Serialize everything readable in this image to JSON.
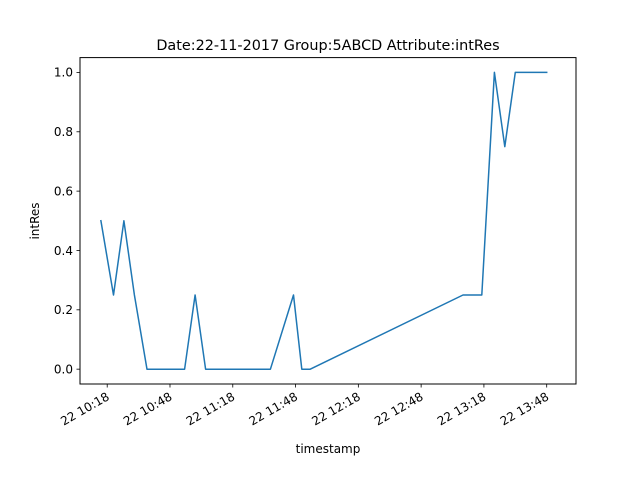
{
  "chart_data": {
    "type": "line",
    "title": "Date:22-11-2017  Group:5ABCD Attribute:intRes",
    "xlabel": "timestamp",
    "ylabel": "intRes",
    "grid": false,
    "x_tick_labels": [
      "22 10:18",
      "22 10:48",
      "22 11:18",
      "22 11:48",
      "22 12:18",
      "22 12:48",
      "22 13:18",
      "22 13:48"
    ],
    "x_ticks": [
      "2017-11-22 10:18",
      "2017-11-22 10:48",
      "2017-11-22 11:18",
      "2017-11-22 11:48",
      "2017-11-22 12:18",
      "2017-11-22 12:48",
      "2017-11-22 13:18",
      "2017-11-22 13:48"
    ],
    "xlim": [
      "2017-11-22 10:05",
      "2017-11-22 14:02"
    ],
    "y_ticks": [
      0.0,
      0.2,
      0.4,
      0.6,
      0.8,
      1.0
    ],
    "y_tick_labels": [
      "0.0",
      "0.2",
      "0.4",
      "0.6",
      "0.8",
      "1.0"
    ],
    "ylim": [
      -0.05,
      1.05
    ],
    "series": [
      {
        "color": "#1f77b4",
        "points": [
          {
            "x": "2017-11-22 10:15",
            "y": 0.5
          },
          {
            "x": "2017-11-22 10:21",
            "y": 0.25
          },
          {
            "x": "2017-11-22 10:26",
            "y": 0.5
          },
          {
            "x": "2017-11-22 10:31",
            "y": 0.25
          },
          {
            "x": "2017-11-22 10:37",
            "y": 0.0
          },
          {
            "x": "2017-11-22 10:55",
            "y": 0.0
          },
          {
            "x": "2017-11-22 11:00",
            "y": 0.25
          },
          {
            "x": "2017-11-22 11:05",
            "y": 0.0
          },
          {
            "x": "2017-11-22 11:36",
            "y": 0.0
          },
          {
            "x": "2017-11-22 11:47",
            "y": 0.25
          },
          {
            "x": "2017-11-22 11:51",
            "y": 0.0
          },
          {
            "x": "2017-11-22 11:55",
            "y": 0.0
          },
          {
            "x": "2017-11-22 13:08",
            "y": 0.25
          },
          {
            "x": "2017-11-22 13:17",
            "y": 0.25
          },
          {
            "x": "2017-11-22 13:23",
            "y": 1.0
          },
          {
            "x": "2017-11-22 13:28",
            "y": 0.75
          },
          {
            "x": "2017-11-22 13:33",
            "y": 1.0
          },
          {
            "x": "2017-11-22 13:48",
            "y": 1.0
          }
        ]
      }
    ]
  }
}
